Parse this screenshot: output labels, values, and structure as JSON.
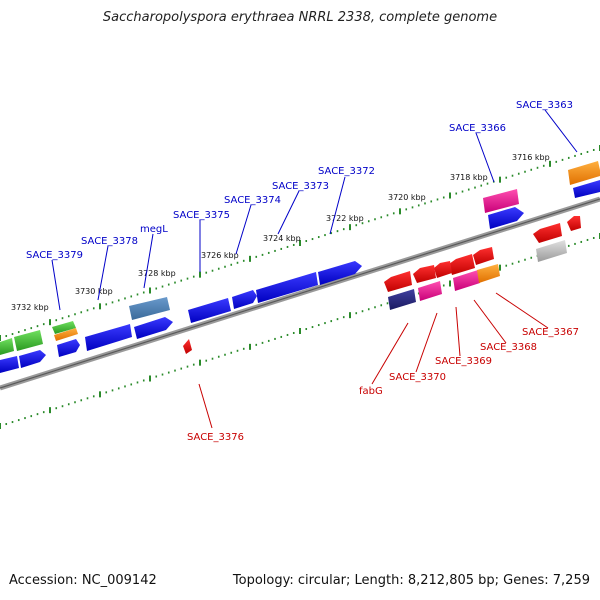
{
  "header": {
    "title": "Saccharopolyspora erythraea NRRL 2338, complete genome"
  },
  "footer": {
    "accession": "Accession: NC_009142",
    "summary": "Topology: circular; Length: 8,212,805 bp; Genes: 7,259"
  },
  "colors": {
    "top_label": "#0000c8",
    "bottom_label": "#c80000",
    "backbone": "#8a8a8a",
    "tick": "#2a8a2a"
  },
  "tick_labels": [
    "3716 kbp",
    "3718 kbp",
    "3720 kbp",
    "3722 kbp",
    "3724 kbp",
    "3726 kbp",
    "3728 kbp",
    "3730 kbp",
    "3732 kbp"
  ],
  "top_gene_labels": [
    "SACE_3363",
    "SACE_3366",
    "SACE_3372",
    "SACE_3373",
    "SACE_3374",
    "SACE_3375",
    "megL",
    "SACE_3378",
    "SACE_3379"
  ],
  "bottom_gene_labels": [
    "SACE_3367",
    "SACE_3368",
    "SACE_3369",
    "SACE_3370",
    "fabG",
    "SACE_3376"
  ]
}
